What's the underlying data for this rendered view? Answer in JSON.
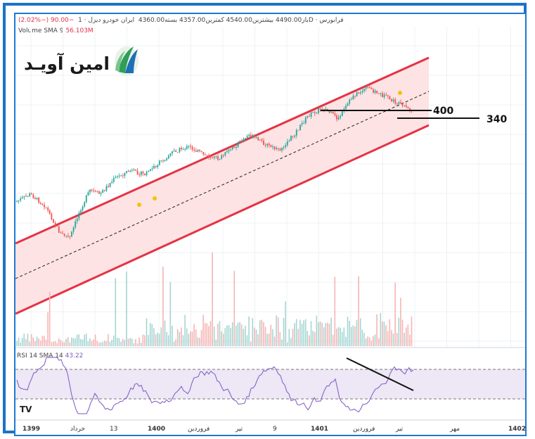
{
  "header": {
    "symbol_text": "ایران خودرو دیزل · 1D · فرابورس",
    "ohlc_text": "باز4490.00  بیشترین4540.00  کمترین4357.00  بسته4360.00",
    "change_text": "(2.02%−) 90.00−",
    "volume_label": "Volume SMA 9",
    "volume_value": "56.103M"
  },
  "logo": {
    "text": "امین آویـد"
  },
  "levels": {
    "upper_label": "400",
    "lower_label": "340"
  },
  "rsi": {
    "label": "RSI 14 SMA 14",
    "value": "43.22"
  },
  "watermark": "TV",
  "time_axis": [
    "1399",
    "خرداد",
    "13",
    "1400",
    "فروردین",
    "تیر",
    "9",
    "1401",
    "فروردین",
    "تیر",
    "مهر",
    "1402"
  ],
  "colors": {
    "channel": "#e53345",
    "channel_fill": "#fde3e4",
    "up": "#26a69a",
    "down": "#ef5350",
    "rsi_line": "#7e57c2",
    "rsi_band": "#ede7f6",
    "frame": "#1a73c9"
  },
  "chart_data": {
    "type": "candlestick",
    "title": "ایران خودرو دیزل",
    "timeframe": "1D",
    "exchange": "فرابورس",
    "ohlc_last": {
      "open": 4490.0,
      "high": 4540.0,
      "low": 4357.0,
      "close": 4360.0,
      "change": -90.0,
      "change_pct": -2.02
    },
    "channel": {
      "type": "ascending parallel channel",
      "lines": [
        "upper",
        "median (dashed)",
        "lower"
      ]
    },
    "horizontal_levels": [
      400,
      340
    ],
    "price_path": [
      [
        0,
        0.46
      ],
      [
        0.03,
        0.5
      ],
      [
        0.06,
        0.44
      ],
      [
        0.09,
        0.3
      ],
      [
        0.11,
        0.28
      ],
      [
        0.13,
        0.42
      ],
      [
        0.15,
        0.52
      ],
      [
        0.17,
        0.5
      ],
      [
        0.2,
        0.58
      ],
      [
        0.23,
        0.62
      ],
      [
        0.26,
        0.6
      ],
      [
        0.29,
        0.66
      ],
      [
        0.32,
        0.72
      ],
      [
        0.35,
        0.74
      ],
      [
        0.38,
        0.7
      ],
      [
        0.41,
        0.68
      ],
      [
        0.44,
        0.74
      ],
      [
        0.47,
        0.8
      ],
      [
        0.5,
        0.76
      ],
      [
        0.53,
        0.72
      ],
      [
        0.56,
        0.8
      ],
      [
        0.59,
        0.9
      ],
      [
        0.62,
        0.94
      ],
      [
        0.65,
        0.88
      ],
      [
        0.68,
        1.0
      ],
      [
        0.71,
        1.04
      ],
      [
        0.74,
        1.0
      ],
      [
        0.77,
        0.96
      ],
      [
        0.8,
        0.92
      ]
    ],
    "volume_sma": 56.103,
    "rsi": {
      "period": 14,
      "sma": 14,
      "value": 43.22,
      "divergence_line": "descending"
    }
  }
}
